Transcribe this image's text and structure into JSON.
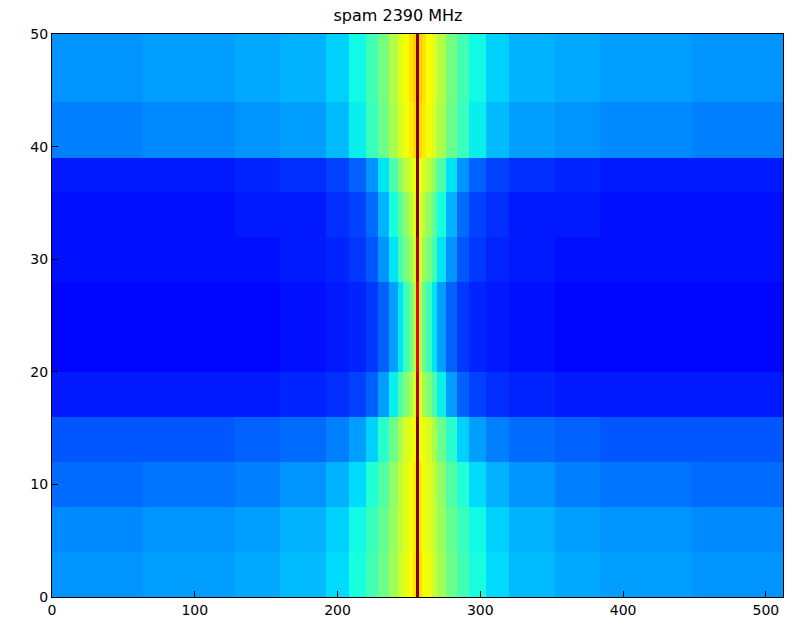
{
  "chart_data": {
    "type": "heatmap",
    "title": "spam 2390 MHz",
    "x": [
      0,
      64,
      128,
      160,
      192,
      208,
      220,
      228,
      236,
      242,
      246,
      250,
      253,
      255,
      257,
      259,
      262,
      266,
      270,
      276,
      284,
      292,
      304,
      320,
      352,
      384,
      448,
      512
    ],
    "y": [
      0,
      4,
      8,
      12,
      16,
      20,
      24,
      28,
      32,
      36,
      39,
      44,
      50
    ],
    "z": [
      [
        0.27,
        0.28,
        0.29,
        0.31,
        0.34,
        0.38,
        0.43,
        0.48,
        0.54,
        0.59,
        0.62,
        0.64,
        0.66,
        1.0,
        0.66,
        0.64,
        0.62,
        0.59,
        0.54,
        0.48,
        0.43,
        0.38,
        0.34,
        0.31,
        0.29,
        0.28,
        0.27
      ],
      [
        0.26,
        0.27,
        0.28,
        0.3,
        0.33,
        0.37,
        0.42,
        0.47,
        0.53,
        0.58,
        0.61,
        0.63,
        0.65,
        1.0,
        0.65,
        0.63,
        0.61,
        0.58,
        0.53,
        0.47,
        0.42,
        0.37,
        0.33,
        0.3,
        0.28,
        0.27,
        0.26
      ],
      [
        0.23,
        0.24,
        0.25,
        0.27,
        0.3,
        0.34,
        0.39,
        0.45,
        0.52,
        0.58,
        0.61,
        0.63,
        0.65,
        1.0,
        0.65,
        0.63,
        0.61,
        0.58,
        0.52,
        0.45,
        0.39,
        0.34,
        0.3,
        0.27,
        0.25,
        0.24,
        0.23
      ],
      [
        0.21,
        0.21,
        0.22,
        0.23,
        0.25,
        0.28,
        0.33,
        0.4,
        0.48,
        0.55,
        0.6,
        0.62,
        0.64,
        1.0,
        0.64,
        0.62,
        0.6,
        0.55,
        0.48,
        0.4,
        0.33,
        0.28,
        0.25,
        0.23,
        0.22,
        0.21,
        0.21
      ],
      [
        0.15,
        0.15,
        0.15,
        0.16,
        0.17,
        0.19,
        0.22,
        0.28,
        0.36,
        0.44,
        0.5,
        0.55,
        0.6,
        0.95,
        0.6,
        0.55,
        0.5,
        0.44,
        0.36,
        0.28,
        0.22,
        0.19,
        0.17,
        0.16,
        0.15,
        0.15,
        0.15
      ],
      [
        0.13,
        0.13,
        0.13,
        0.14,
        0.15,
        0.16,
        0.18,
        0.22,
        0.28,
        0.35,
        0.42,
        0.48,
        0.56,
        0.9,
        0.56,
        0.48,
        0.42,
        0.35,
        0.28,
        0.22,
        0.18,
        0.16,
        0.15,
        0.14,
        0.13,
        0.13,
        0.13
      ],
      [
        0.13,
        0.13,
        0.13,
        0.14,
        0.15,
        0.16,
        0.18,
        0.22,
        0.28,
        0.35,
        0.42,
        0.48,
        0.56,
        0.9,
        0.56,
        0.48,
        0.42,
        0.35,
        0.28,
        0.22,
        0.18,
        0.16,
        0.15,
        0.14,
        0.13,
        0.13,
        0.13
      ],
      [
        0.14,
        0.14,
        0.14,
        0.15,
        0.16,
        0.18,
        0.21,
        0.27,
        0.35,
        0.43,
        0.49,
        0.54,
        0.59,
        0.95,
        0.59,
        0.54,
        0.49,
        0.43,
        0.35,
        0.27,
        0.21,
        0.18,
        0.16,
        0.15,
        0.14,
        0.14,
        0.14
      ],
      [
        0.14,
        0.14,
        0.15,
        0.15,
        0.17,
        0.19,
        0.23,
        0.3,
        0.38,
        0.46,
        0.52,
        0.57,
        0.61,
        1.0,
        0.61,
        0.57,
        0.52,
        0.46,
        0.38,
        0.3,
        0.23,
        0.19,
        0.17,
        0.15,
        0.15,
        0.14,
        0.14
      ],
      [
        0.15,
        0.15,
        0.16,
        0.17,
        0.19,
        0.22,
        0.27,
        0.35,
        0.44,
        0.52,
        0.57,
        0.6,
        0.63,
        1.0,
        0.63,
        0.6,
        0.57,
        0.52,
        0.44,
        0.35,
        0.27,
        0.22,
        0.19,
        0.17,
        0.16,
        0.15,
        0.15
      ],
      [
        0.25,
        0.26,
        0.27,
        0.28,
        0.31,
        0.36,
        0.42,
        0.48,
        0.55,
        0.6,
        0.63,
        0.65,
        0.67,
        1.0,
        0.67,
        0.65,
        0.63,
        0.6,
        0.55,
        0.48,
        0.42,
        0.36,
        0.31,
        0.28,
        0.27,
        0.26,
        0.25
      ],
      [
        0.27,
        0.28,
        0.29,
        0.3,
        0.33,
        0.37,
        0.43,
        0.49,
        0.56,
        0.61,
        0.64,
        0.66,
        0.68,
        1.0,
        0.68,
        0.66,
        0.64,
        0.61,
        0.56,
        0.49,
        0.43,
        0.37,
        0.33,
        0.3,
        0.29,
        0.28,
        0.27
      ]
    ],
    "zlim": [
      0,
      1
    ],
    "xlim": [
      0,
      512
    ],
    "ylim": [
      0,
      50
    ],
    "xticks": [
      0,
      100,
      200,
      300,
      400,
      500
    ],
    "yticks": [
      0,
      10,
      20,
      30,
      40,
      50
    ],
    "grid": false
  }
}
